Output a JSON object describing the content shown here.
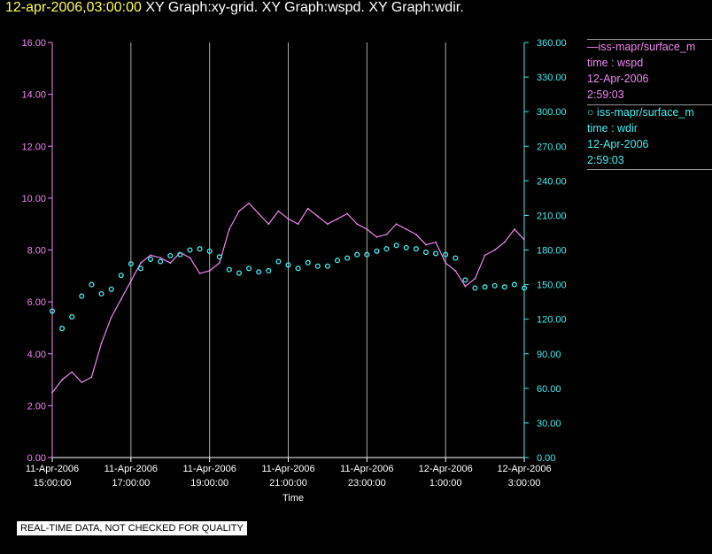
{
  "header": {
    "timestamp": "12-apr-2006,03:00:00",
    "graphs": "  XY Graph:xy-grid.  XY Graph:wspd.  XY Graph:wdir."
  },
  "legend": {
    "wspd": {
      "symbol": "—",
      "source": "iss-mapr/surface_m",
      "field": "time : wspd",
      "date": "12-Apr-2006",
      "time": "2:59:03"
    },
    "wdir": {
      "symbol": "○",
      "source": "iss-mapr/surface_m",
      "field": "time : wdir",
      "date": "12-Apr-2006",
      "time": "2:59:03"
    }
  },
  "footer": {
    "xlabel": "Time",
    "disclaimer": "REAL-TIME DATA, NOT CHECKED FOR QUALITY"
  },
  "colors": {
    "wspd": "#ee88ee",
    "wdir": "#44eeee",
    "grid": "#aaaaaa",
    "title": "#ffff55"
  },
  "chart_data": {
    "type": "line",
    "xlabel": "Time",
    "grid": "vertical",
    "x_ticks": [
      {
        "hour": 15,
        "top": "11-Apr-2006",
        "bottom": "15:00:00"
      },
      {
        "hour": 17,
        "top": "11-Apr-2006",
        "bottom": "17:00:00"
      },
      {
        "hour": 19,
        "top": "11-Apr-2006",
        "bottom": "19:00:00"
      },
      {
        "hour": 21,
        "top": "11-Apr-2006",
        "bottom": "21:00:00"
      },
      {
        "hour": 23,
        "top": "11-Apr-2006",
        "bottom": "23:00:00"
      },
      {
        "hour": 25,
        "top": "12-Apr-2006",
        "bottom": "1:00:00"
      },
      {
        "hour": 27,
        "top": "12-Apr-2006",
        "bottom": "3:00:00"
      }
    ],
    "y_left": {
      "range": [
        0,
        16
      ],
      "ticks": [
        "0.00",
        "2.00",
        "4.00",
        "6.00",
        "8.00",
        "10.00",
        "12.00",
        "14.00",
        "16.00"
      ]
    },
    "y_right": {
      "range": [
        0,
        360
      ],
      "ticks": [
        "0.00",
        "30.00",
        "60.00",
        "90.00",
        "120.00",
        "150.00",
        "180.00",
        "210.00",
        "240.00",
        "270.00",
        "300.00",
        "330.00",
        "360.00"
      ]
    },
    "series": [
      {
        "name": "iss-mapr/surface_m time : wspd",
        "axis": "left",
        "style": "line",
        "x": [
          15.0,
          15.25,
          15.5,
          15.75,
          16.0,
          16.25,
          16.5,
          16.75,
          17.0,
          17.25,
          17.5,
          17.75,
          18.0,
          18.25,
          18.5,
          18.75,
          19.0,
          19.25,
          19.5,
          19.75,
          20.0,
          20.25,
          20.5,
          20.75,
          21.0,
          21.25,
          21.5,
          21.75,
          22.0,
          22.25,
          22.5,
          22.75,
          23.0,
          23.25,
          23.5,
          23.75,
          24.0,
          24.25,
          24.5,
          24.75,
          25.0,
          25.25,
          25.5,
          25.75,
          26.0,
          26.25,
          26.5,
          26.75,
          27.0
        ],
        "values": [
          2.5,
          3.0,
          3.3,
          2.9,
          3.1,
          4.4,
          5.4,
          6.1,
          6.8,
          7.5,
          7.8,
          7.7,
          7.5,
          7.9,
          7.7,
          7.1,
          7.2,
          7.5,
          8.8,
          9.5,
          9.8,
          9.4,
          9.0,
          9.5,
          9.2,
          9.0,
          9.6,
          9.3,
          9.0,
          9.2,
          9.4,
          9.0,
          8.8,
          8.5,
          8.6,
          9.0,
          8.8,
          8.6,
          8.2,
          8.3,
          7.5,
          7.2,
          6.6,
          6.9,
          7.8,
          8.0,
          8.3,
          8.8,
          8.4
        ]
      },
      {
        "name": "iss-mapr/surface_m time : wdir",
        "axis": "right",
        "style": "scatter",
        "x": [
          15.0,
          15.25,
          15.5,
          15.75,
          16.0,
          16.25,
          16.5,
          16.75,
          17.0,
          17.25,
          17.5,
          17.75,
          18.0,
          18.25,
          18.5,
          18.75,
          19.0,
          19.25,
          19.5,
          19.75,
          20.0,
          20.25,
          20.5,
          20.75,
          21.0,
          21.25,
          21.5,
          21.75,
          22.0,
          22.25,
          22.5,
          22.75,
          23.0,
          23.25,
          23.5,
          23.75,
          24.0,
          24.25,
          24.5,
          24.75,
          25.0,
          25.25,
          25.5,
          25.75,
          26.0,
          26.25,
          26.5,
          26.75,
          27.0
        ],
        "values": [
          127,
          112,
          122,
          140,
          150,
          142,
          146,
          158,
          168,
          164,
          172,
          170,
          175,
          176,
          180,
          181,
          179,
          174,
          163,
          160,
          164,
          161,
          162,
          170,
          167,
          164,
          169,
          166,
          166,
          171,
          173,
          176,
          176,
          179,
          181,
          184,
          182,
          181,
          178,
          177,
          176,
          173,
          154,
          147,
          148,
          149,
          148,
          150,
          147
        ]
      }
    ]
  }
}
